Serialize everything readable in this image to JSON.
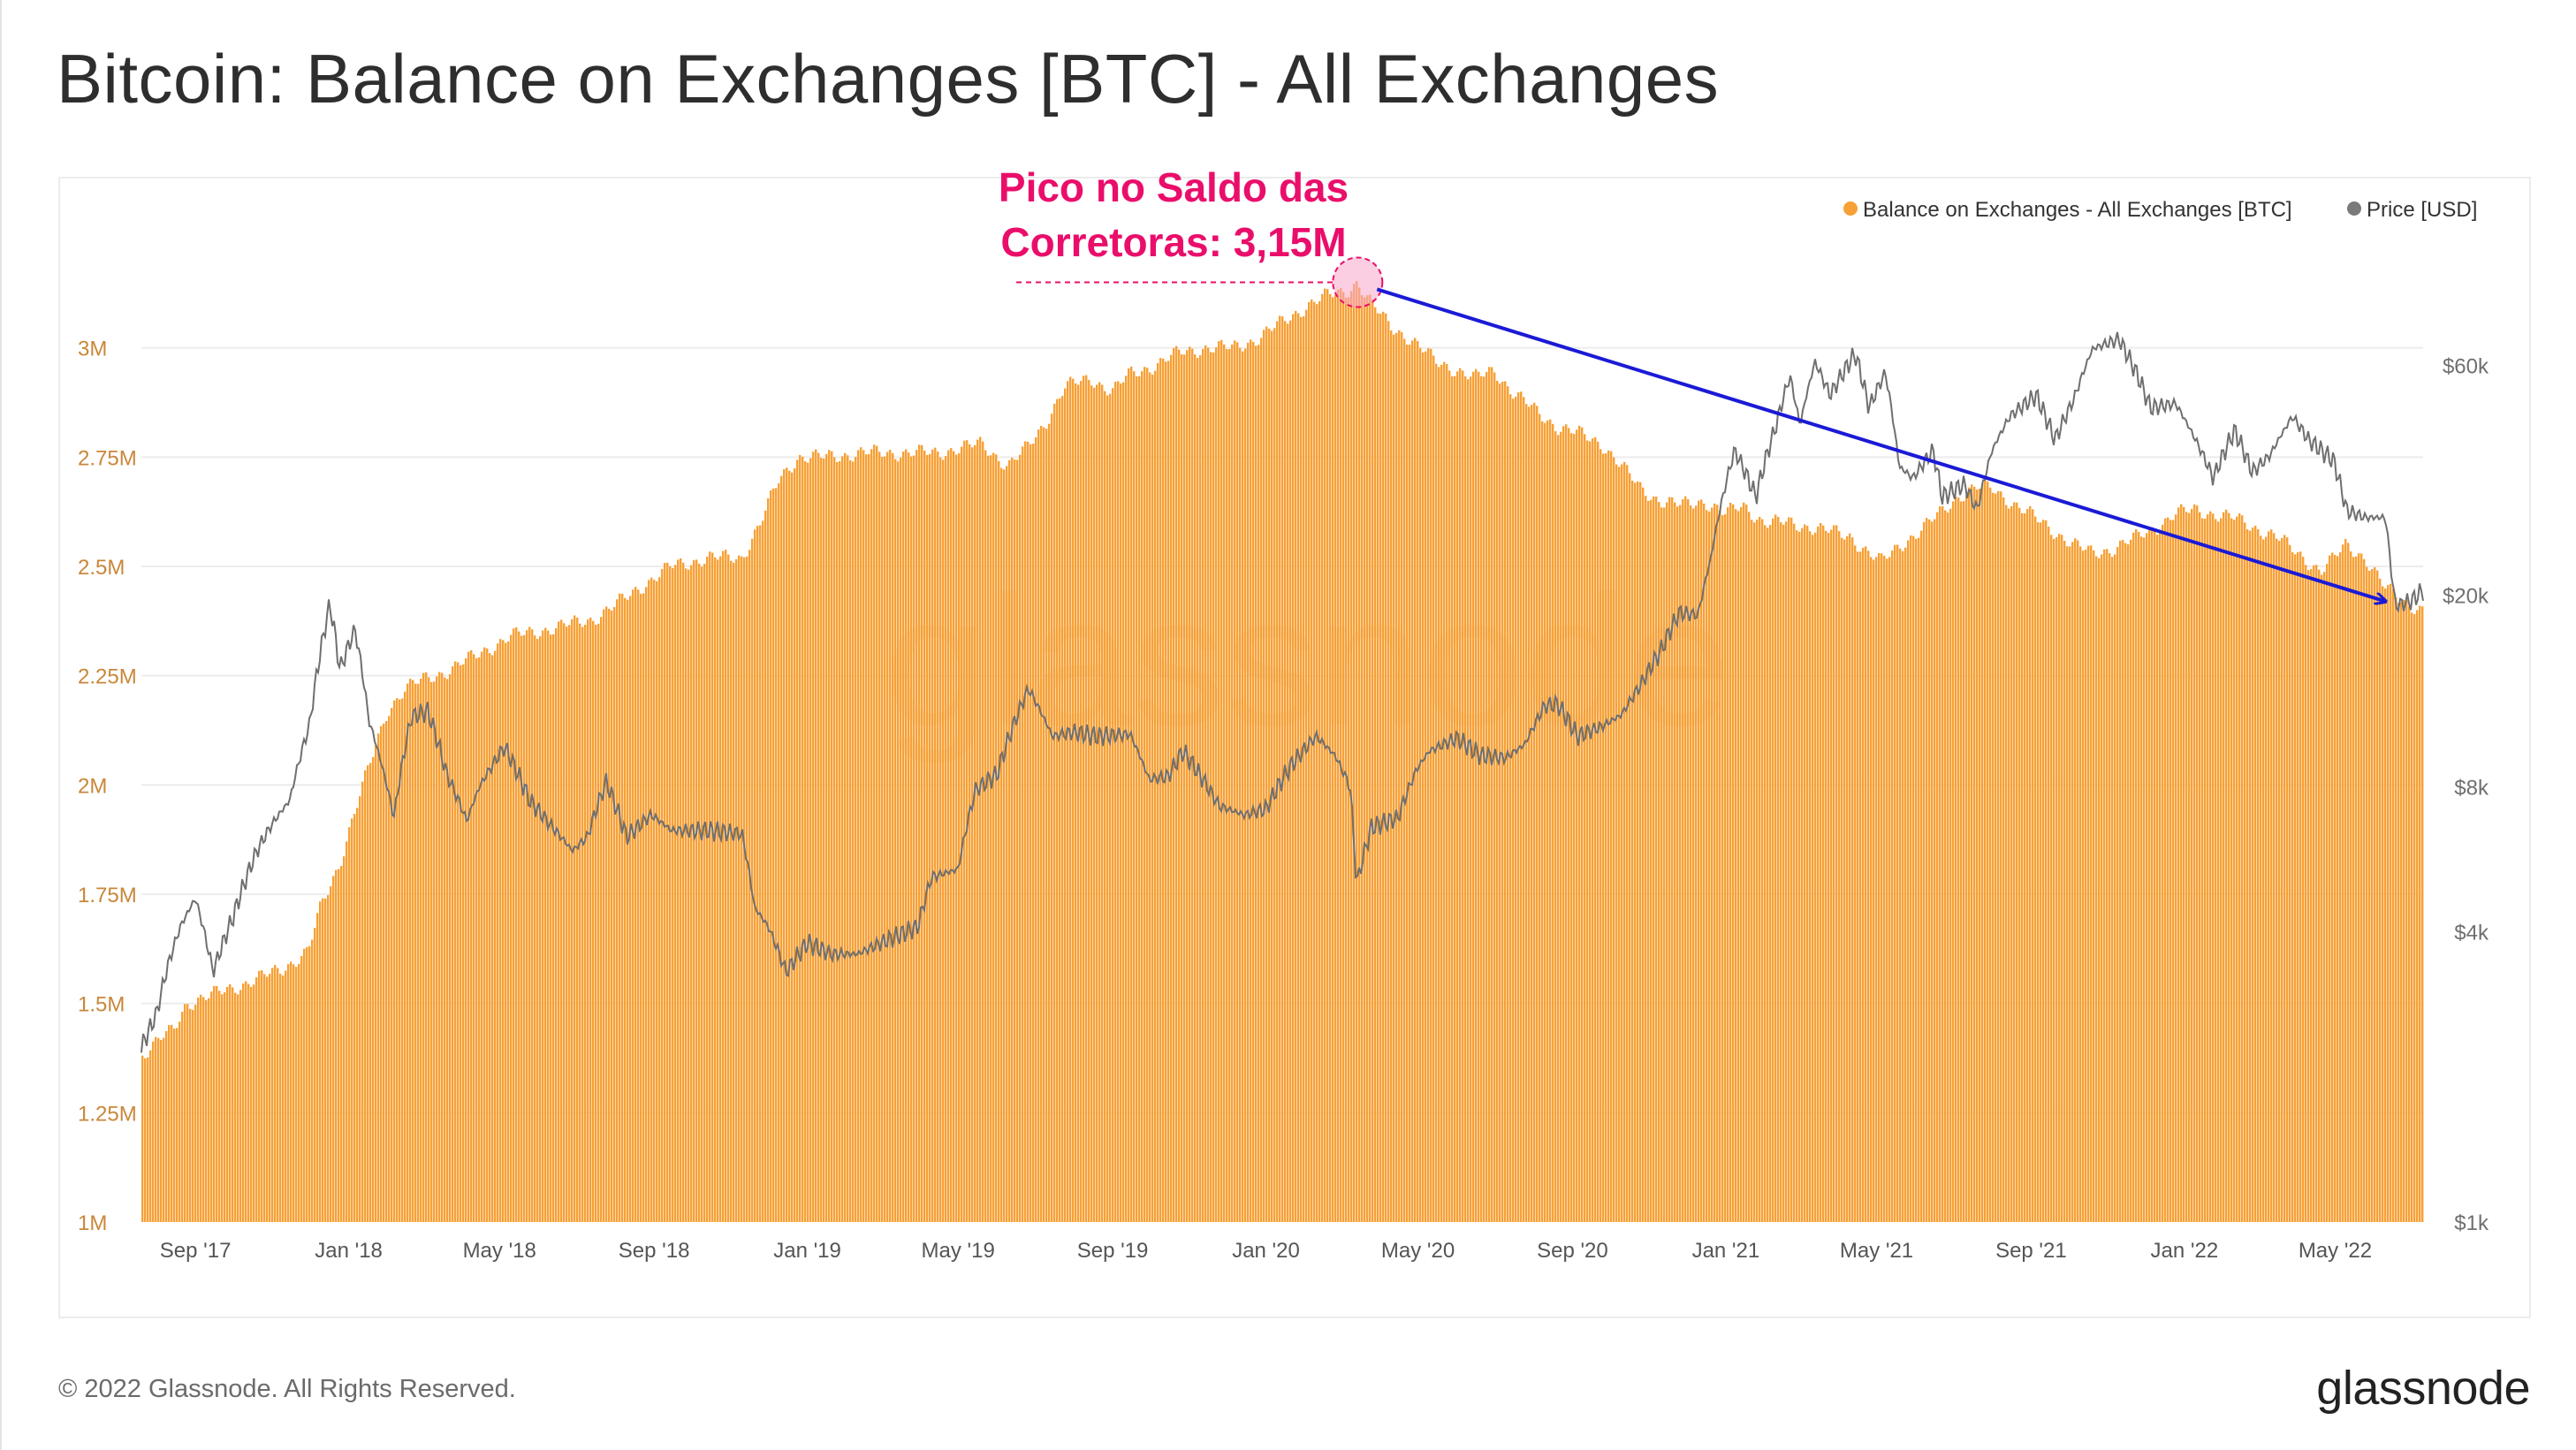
{
  "title": "Bitcoin: Balance on Exchanges [BTC] - All Exchanges",
  "footer": {
    "copyright": "© 2022 Glassnode. All Rights Reserved.",
    "brand": "glassnode"
  },
  "watermark": "glassnode",
  "annotation": {
    "line1": "Pico no Saldo das",
    "line2": "Corretoras: 3,15M",
    "peak_date": "2020-03-14",
    "peak_value": 3.15,
    "arrow_to_date": "2022-06-10",
    "arrow_to_value": 2.42,
    "color": "#ea0e6b",
    "arrow_color": "#1a1ad6"
  },
  "colors": {
    "balance": "#f7a035",
    "price": "#6f6f6f",
    "left_ticks": "#c9873a",
    "right_ticks": "#6f6f6f"
  },
  "chart_data": {
    "type": "area",
    "title": "Bitcoin: Balance on Exchanges [BTC] - All Exchanges",
    "x_tick_labels": [
      "Sep '17",
      "Jan '18",
      "May '18",
      "Sep '18",
      "Jan '19",
      "May '19",
      "Sep '19",
      "Jan '20",
      "May '20",
      "Sep '20",
      "Jan '21",
      "May '21",
      "Sep '21",
      "Jan '22",
      "May '22"
    ],
    "x_tick_dates": [
      "2017-09-01",
      "2018-01-01",
      "2018-05-01",
      "2018-09-01",
      "2019-01-01",
      "2019-05-01",
      "2019-09-01",
      "2020-01-01",
      "2020-05-01",
      "2020-09-01",
      "2021-01-01",
      "2021-05-01",
      "2021-09-01",
      "2022-01-01",
      "2022-05-01"
    ],
    "x_range": [
      "2017-07-20",
      "2022-07-10"
    ],
    "legend": [
      "Balance on Exchanges - All Exchanges [BTC]",
      "Price [USD]"
    ],
    "legend_position": "top-right",
    "grid": true,
    "left_axis": {
      "ticks": [
        "1M",
        "1.25M",
        "1.5M",
        "1.75M",
        "2M",
        "2.25M",
        "2.5M",
        "2.75M",
        "3M"
      ],
      "tick_values": [
        1.0,
        1.25,
        1.5,
        1.75,
        2.0,
        2.25,
        2.5,
        2.75,
        3.0
      ],
      "range": [
        1.0,
        3.25
      ],
      "unit": "millions BTC"
    },
    "right_axis": {
      "ticks": [
        "$1k",
        "$4k",
        "$8k",
        "$20k",
        "$60k"
      ],
      "tick_values": [
        1000,
        4000,
        8000,
        20000,
        60000
      ],
      "scale": "log",
      "range": [
        1000,
        110000
      ]
    },
    "series": [
      {
        "name": "Balance on Exchanges - All Exchanges [BTC]",
        "kind": "area",
        "unit": "millions BTC",
        "points": [
          [
            "2017-07-20",
            1.38
          ],
          [
            "2017-08-05",
            1.42
          ],
          [
            "2017-08-15",
            1.44
          ],
          [
            "2017-08-25",
            1.5
          ],
          [
            "2017-09-15",
            1.52
          ],
          [
            "2017-10-15",
            1.55
          ],
          [
            "2017-11-10",
            1.58
          ],
          [
            "2017-11-30",
            1.62
          ],
          [
            "2017-12-10",
            1.72
          ],
          [
            "2017-12-25",
            1.82
          ],
          [
            "2018-01-05",
            1.93
          ],
          [
            "2018-01-15",
            2.02
          ],
          [
            "2018-02-01",
            2.17
          ],
          [
            "2018-02-15",
            2.22
          ],
          [
            "2018-03-01",
            2.24
          ],
          [
            "2018-03-20",
            2.26
          ],
          [
            "2018-04-15",
            2.3
          ],
          [
            "2018-05-10",
            2.34
          ],
          [
            "2018-06-15",
            2.36
          ],
          [
            "2018-07-15",
            2.38
          ],
          [
            "2018-08-01",
            2.41
          ],
          [
            "2018-08-20",
            2.45
          ],
          [
            "2018-09-15",
            2.5
          ],
          [
            "2018-10-15",
            2.52
          ],
          [
            "2018-11-10",
            2.52
          ],
          [
            "2018-11-25",
            2.6
          ],
          [
            "2018-12-10",
            2.7
          ],
          [
            "2018-12-25",
            2.75
          ],
          [
            "2019-01-15",
            2.75
          ],
          [
            "2019-02-15",
            2.76
          ],
          [
            "2019-03-15",
            2.76
          ],
          [
            "2019-04-15",
            2.76
          ],
          [
            "2019-05-01",
            2.77
          ],
          [
            "2019-05-20",
            2.78
          ],
          [
            "2019-06-10",
            2.73
          ],
          [
            "2019-06-25",
            2.77
          ],
          [
            "2019-07-10",
            2.83
          ],
          [
            "2019-07-25",
            2.91
          ],
          [
            "2019-08-15",
            2.93
          ],
          [
            "2019-09-01",
            2.9
          ],
          [
            "2019-09-15",
            2.94
          ],
          [
            "2019-10-05",
            2.96
          ],
          [
            "2019-10-25",
            2.99
          ],
          [
            "2019-11-15",
            3.0
          ],
          [
            "2019-12-05",
            3.0
          ],
          [
            "2019-12-25",
            3.02
          ],
          [
            "2020-01-15",
            3.06
          ],
          [
            "2020-02-05",
            3.1
          ],
          [
            "2020-02-20",
            3.12
          ],
          [
            "2020-03-05",
            3.13
          ],
          [
            "2020-03-14",
            3.15
          ],
          [
            "2020-03-25",
            3.1
          ],
          [
            "2020-04-10",
            3.05
          ],
          [
            "2020-04-25",
            3.02
          ],
          [
            "2020-05-15",
            2.97
          ],
          [
            "2020-06-01",
            2.95
          ],
          [
            "2020-06-15",
            2.93
          ],
          [
            "2020-07-01",
            2.95
          ],
          [
            "2020-07-15",
            2.9
          ],
          [
            "2020-08-01",
            2.86
          ],
          [
            "2020-08-20",
            2.82
          ],
          [
            "2020-09-10",
            2.8
          ],
          [
            "2020-09-25",
            2.78
          ],
          [
            "2020-10-10",
            2.73
          ],
          [
            "2020-10-25",
            2.68
          ],
          [
            "2020-11-10",
            2.65
          ],
          [
            "2020-11-25",
            2.64
          ],
          [
            "2020-12-15",
            2.65
          ],
          [
            "2021-01-01",
            2.62
          ],
          [
            "2021-01-15",
            2.64
          ],
          [
            "2021-02-01",
            2.6
          ],
          [
            "2021-02-20",
            2.6
          ],
          [
            "2021-03-10",
            2.59
          ],
          [
            "2021-03-25",
            2.58
          ],
          [
            "2021-04-10",
            2.57
          ],
          [
            "2021-04-25",
            2.53
          ],
          [
            "2021-05-05",
            2.51
          ],
          [
            "2021-05-20",
            2.55
          ],
          [
            "2021-06-05",
            2.58
          ],
          [
            "2021-06-20",
            2.62
          ],
          [
            "2021-07-05",
            2.66
          ],
          [
            "2021-07-20",
            2.68
          ],
          [
            "2021-08-01",
            2.68
          ],
          [
            "2021-08-20",
            2.64
          ],
          [
            "2021-09-05",
            2.61
          ],
          [
            "2021-09-20",
            2.58
          ],
          [
            "2021-10-05",
            2.55
          ],
          [
            "2021-10-20",
            2.53
          ],
          [
            "2021-11-05",
            2.54
          ],
          [
            "2021-11-20",
            2.56
          ],
          [
            "2021-12-10",
            2.59
          ],
          [
            "2021-12-25",
            2.62
          ],
          [
            "2022-01-10",
            2.63
          ],
          [
            "2022-01-25",
            2.62
          ],
          [
            "2022-02-10",
            2.61
          ],
          [
            "2022-02-25",
            2.59
          ],
          [
            "2022-03-15",
            2.57
          ],
          [
            "2022-04-01",
            2.53
          ],
          [
            "2022-04-20",
            2.49
          ],
          [
            "2022-05-01",
            2.52
          ],
          [
            "2022-05-10",
            2.55
          ],
          [
            "2022-05-25",
            2.52
          ],
          [
            "2022-06-10",
            2.45
          ],
          [
            "2022-06-25",
            2.42
          ],
          [
            "2022-07-10",
            2.4
          ]
        ]
      },
      {
        "name": "Price [USD]",
        "kind": "line",
        "unit": "USD",
        "points": [
          [
            "2017-07-20",
            2300
          ],
          [
            "2017-08-01",
            2700
          ],
          [
            "2017-08-10",
            3400
          ],
          [
            "2017-08-20",
            4100
          ],
          [
            "2017-09-01",
            4700
          ],
          [
            "2017-09-15",
            3300
          ],
          [
            "2017-10-01",
            4300
          ],
          [
            "2017-10-20",
            5900
          ],
          [
            "2017-11-01",
            6700
          ],
          [
            "2017-11-15",
            7500
          ],
          [
            "2017-12-01",
            10800
          ],
          [
            "2017-12-10",
            15500
          ],
          [
            "2017-12-17",
            19200
          ],
          [
            "2017-12-25",
            14000
          ],
          [
            "2018-01-06",
            17000
          ],
          [
            "2018-01-17",
            11000
          ],
          [
            "2018-02-06",
            6900
          ],
          [
            "2018-02-20",
            11200
          ],
          [
            "2018-03-05",
            11500
          ],
          [
            "2018-03-20",
            8500
          ],
          [
            "2018-04-05",
            6800
          ],
          [
            "2018-04-15",
            8000
          ],
          [
            "2018-05-05",
            9700
          ],
          [
            "2018-05-25",
            7500
          ],
          [
            "2018-06-10",
            6700
          ],
          [
            "2018-06-28",
            5900
          ],
          [
            "2018-07-10",
            6300
          ],
          [
            "2018-07-25",
            8200
          ],
          [
            "2018-08-10",
            6300
          ],
          [
            "2018-08-30",
            7000
          ],
          [
            "2018-09-15",
            6500
          ],
          [
            "2018-10-15",
            6500
          ],
          [
            "2018-11-10",
            6400
          ],
          [
            "2018-11-20",
            4500
          ],
          [
            "2018-12-01",
            4100
          ],
          [
            "2018-12-15",
            3300
          ],
          [
            "2019-01-01",
            3800
          ],
          [
            "2019-01-20",
            3600
          ],
          [
            "2019-02-10",
            3600
          ],
          [
            "2019-03-01",
            3800
          ],
          [
            "2019-03-30",
            4100
          ],
          [
            "2019-04-10",
            5200
          ],
          [
            "2019-05-01",
            5400
          ],
          [
            "2019-05-15",
            7900
          ],
          [
            "2019-06-01",
            8500
          ],
          [
            "2019-06-26",
            12800
          ],
          [
            "2019-07-15",
            10200
          ],
          [
            "2019-08-01",
            10400
          ],
          [
            "2019-08-20",
            10200
          ],
          [
            "2019-09-15",
            10300
          ],
          [
            "2019-09-30",
            8300
          ],
          [
            "2019-10-15",
            8400
          ],
          [
            "2019-10-27",
            9500
          ],
          [
            "2019-11-25",
            7300
          ],
          [
            "2019-12-15",
            7000
          ],
          [
            "2020-01-01",
            7200
          ],
          [
            "2020-01-20",
            8800
          ],
          [
            "2020-02-10",
            10200
          ],
          [
            "2020-02-25",
            9300
          ],
          [
            "2020-03-08",
            8000
          ],
          [
            "2020-03-13",
            5000
          ],
          [
            "2020-03-25",
            6600
          ],
          [
            "2020-04-15",
            6900
          ],
          [
            "2020-04-30",
            8700
          ],
          [
            "2020-05-10",
            9500
          ],
          [
            "2020-06-01",
            10100
          ],
          [
            "2020-06-20",
            9300
          ],
          [
            "2020-07-10",
            9200
          ],
          [
            "2020-07-25",
            9800
          ],
          [
            "2020-08-10",
            11800
          ],
          [
            "2020-08-20",
            11900
          ],
          [
            "2020-09-05",
            10200
          ],
          [
            "2020-09-25",
            10700
          ],
          [
            "2020-10-10",
            11300
          ],
          [
            "2020-10-25",
            13000
          ],
          [
            "2020-11-10",
            15300
          ],
          [
            "2020-11-25",
            18400
          ],
          [
            "2020-12-10",
            18200
          ],
          [
            "2020-12-20",
            23800
          ],
          [
            "2021-01-08",
            40000
          ],
          [
            "2021-01-25",
            32000
          ],
          [
            "2021-02-10",
            45000
          ],
          [
            "2021-02-21",
            57000
          ],
          [
            "2021-03-01",
            45000
          ],
          [
            "2021-03-13",
            61000
          ],
          [
            "2021-03-25",
            52000
          ],
          [
            "2021-04-14",
            63500
          ],
          [
            "2021-04-25",
            49000
          ],
          [
            "2021-05-08",
            58000
          ],
          [
            "2021-05-19",
            37000
          ],
          [
            "2021-05-30",
            35000
          ],
          [
            "2021-06-15",
            40000
          ],
          [
            "2021-06-22",
            32000
          ],
          [
            "2021-07-10",
            34000
          ],
          [
            "2021-07-20",
            30000
          ],
          [
            "2021-08-01",
            40000
          ],
          [
            "2021-08-15",
            47000
          ],
          [
            "2021-09-05",
            52000
          ],
          [
            "2021-09-20",
            42000
          ],
          [
            "2021-10-05",
            51000
          ],
          [
            "2021-10-20",
            65000
          ],
          [
            "2021-11-10",
            68000
          ],
          [
            "2021-11-25",
            57000
          ],
          [
            "2021-12-05",
            49000
          ],
          [
            "2021-12-25",
            50000
          ],
          [
            "2022-01-10",
            42000
          ],
          [
            "2022-01-24",
            35000
          ],
          [
            "2022-02-10",
            44000
          ],
          [
            "2022-02-24",
            36000
          ],
          [
            "2022-03-10",
            39000
          ],
          [
            "2022-03-28",
            47000
          ],
          [
            "2022-04-10",
            42000
          ],
          [
            "2022-04-30",
            38000
          ],
          [
            "2022-05-10",
            30000
          ],
          [
            "2022-05-25",
            29000
          ],
          [
            "2022-06-10",
            29000
          ],
          [
            "2022-06-15",
            22000
          ],
          [
            "2022-06-18",
            19000
          ],
          [
            "2022-07-01",
            19500
          ],
          [
            "2022-07-10",
            20500
          ]
        ]
      }
    ]
  }
}
